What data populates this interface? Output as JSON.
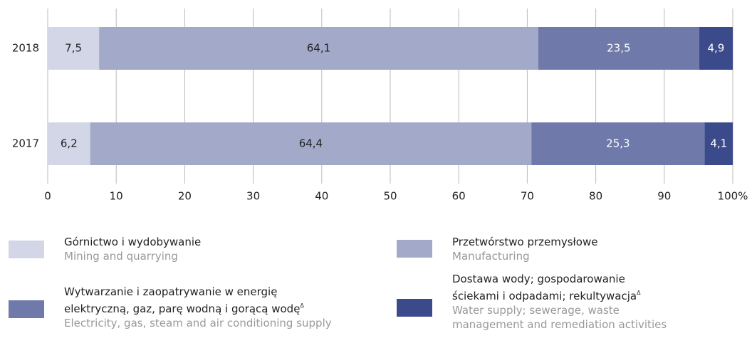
{
  "chart_data": {
    "type": "stacked-bar-horizontal",
    "categories": [
      "2018",
      "2017"
    ],
    "series": [
      {
        "name": "Górnictwo i wydobywanie",
        "name_en": "Mining and quarrying",
        "color": "#d3d6e6",
        "label_color": "#222222",
        "values": [
          7.5,
          6.2
        ],
        "value_labels": [
          "7,5",
          "6,2"
        ]
      },
      {
        "name": "Przetwórstwo przemysłowe",
        "name_en": "Manufacturing",
        "color": "#a3a9c8",
        "label_color": "#222222",
        "values": [
          64.1,
          64.4
        ],
        "value_labels": [
          "64,1",
          "64,4"
        ]
      },
      {
        "name": "Wytwarzanie i zaopatrywanie w energię elektryczną, gaz, parę wodną i gorącą wodę",
        "name_note": "Δ",
        "name_en": "Electricity, gas, steam and air conditioning supply",
        "color": "#6f7aaa",
        "label_color": "#ffffff",
        "values": [
          23.5,
          25.3
        ],
        "value_labels": [
          "23,5",
          "25,3"
        ]
      },
      {
        "name": "Dostawa wody; gospodarowanie ściekami i odpadami; rekultywacja",
        "name_note": "Δ",
        "name_en": "Water supply; sewerage, waste management and remediation activities",
        "color": "#3b4a8a",
        "label_color": "#ffffff",
        "values": [
          4.9,
          4.1
        ],
        "value_labels": [
          "4,9",
          "4,1"
        ]
      }
    ],
    "xlim": [
      0,
      100
    ],
    "xticks": [
      0,
      10,
      20,
      30,
      40,
      50,
      60,
      70,
      80,
      90,
      {
        "value": 100,
        "label": "100%"
      }
    ],
    "grid": true
  }
}
